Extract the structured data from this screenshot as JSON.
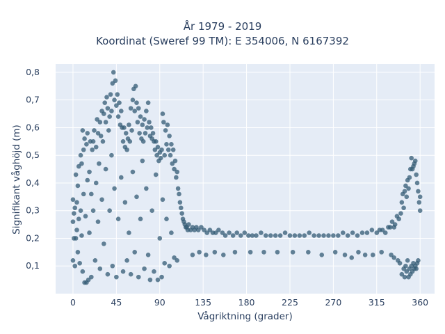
{
  "colors": {
    "plot_bg": "#e5ecf6",
    "grid": "#ffffff",
    "marker": "#335b74",
    "text": "#2a3f5f"
  },
  "chart_data": {
    "type": "scatter",
    "title_line1": "År 1979 - 2019",
    "title_line2": "Koordinat (Sweref 99 TM): E 354006, N 6167392",
    "xlabel": "Vågriktning (grader)",
    "ylabel": "Signifikant våghöjd (m)",
    "xlim": [
      -18,
      375
    ],
    "ylim": [
      0.0,
      0.83
    ],
    "x_ticks": [
      0,
      45,
      90,
      135,
      180,
      225,
      270,
      315,
      360
    ],
    "x_tick_labels": [
      "0",
      "45",
      "90",
      "135",
      "180",
      "225",
      "270",
      "315",
      "360"
    ],
    "y_ticks": [
      0.1,
      0.2,
      0.3,
      0.4,
      0.5,
      0.6,
      0.7,
      0.8
    ],
    "y_tick_labels": [
      "0,1",
      "0,2",
      "0,3",
      "0,4",
      "0,5",
      "0,6",
      "0,7",
      "0,8"
    ],
    "grid": true,
    "legend": "none",
    "marker_opacity": 0.75,
    "points": [
      [
        0,
        0.26
      ],
      [
        0,
        0.12
      ],
      [
        0,
        0.34
      ],
      [
        1,
        0.2
      ],
      [
        1,
        0.29
      ],
      [
        2,
        0.1
      ],
      [
        2,
        0.31
      ],
      [
        3,
        0.43
      ],
      [
        3,
        0.2
      ],
      [
        4,
        0.23
      ],
      [
        4,
        0.33
      ],
      [
        5,
        0.15
      ],
      [
        5,
        0.39
      ],
      [
        6,
        0.46
      ],
      [
        6,
        0.27
      ],
      [
        7,
        0.11
      ],
      [
        8,
        0.5
      ],
      [
        8,
        0.3
      ],
      [
        9,
        0.47
      ],
      [
        9,
        0.21
      ],
      [
        10,
        0.59
      ],
      [
        10,
        0.08
      ],
      [
        11,
        0.52
      ],
      [
        11,
        0.36
      ],
      [
        12,
        0.04
      ],
      [
        12,
        0.56
      ],
      [
        13,
        0.28
      ],
      [
        14,
        0.54
      ],
      [
        14,
        0.04
      ],
      [
        15,
        0.41
      ],
      [
        15,
        0.58
      ],
      [
        16,
        0.05
      ],
      [
        17,
        0.44
      ],
      [
        17,
        0.22
      ],
      [
        18,
        0.55
      ],
      [
        19,
        0.36
      ],
      [
        19,
        0.06
      ],
      [
        20,
        0.52
      ],
      [
        21,
        0.55
      ],
      [
        21,
        0.3
      ],
      [
        22,
        0.59
      ],
      [
        23,
        0.12
      ],
      [
        24,
        0.53
      ],
      [
        24,
        0.4
      ],
      [
        25,
        0.63
      ],
      [
        26,
        0.58
      ],
      [
        26,
        0.26
      ],
      [
        27,
        0.47
      ],
      [
        28,
        0.62
      ],
      [
        28,
        0.09
      ],
      [
        29,
        0.57
      ],
      [
        30,
        0.66
      ],
      [
        30,
        0.34
      ],
      [
        31,
        0.55
      ],
      [
        32,
        0.65
      ],
      [
        32,
        0.18
      ],
      [
        33,
        0.69
      ],
      [
        34,
        0.62
      ],
      [
        34,
        0.45
      ],
      [
        35,
        0.71
      ],
      [
        36,
        0.67
      ],
      [
        36,
        0.07
      ],
      [
        37,
        0.59
      ],
      [
        38,
        0.64
      ],
      [
        38,
        0.3
      ],
      [
        39,
        0.72
      ],
      [
        40,
        0.66
      ],
      [
        40,
        0.5
      ],
      [
        41,
        0.76
      ],
      [
        41,
        0.1
      ],
      [
        42,
        0.8
      ],
      [
        43,
        0.7
      ],
      [
        43,
        0.38
      ],
      [
        44,
        0.77
      ],
      [
        45,
        0.68
      ],
      [
        45,
        0.06
      ],
      [
        46,
        0.72
      ],
      [
        47,
        0.64
      ],
      [
        47,
        0.27
      ],
      [
        48,
        0.69
      ],
      [
        49,
        0.61
      ],
      [
        50,
        0.66
      ],
      [
        50,
        0.42
      ],
      [
        51,
        0.6
      ],
      [
        52,
        0.55
      ],
      [
        52,
        0.08
      ],
      [
        53,
        0.6
      ],
      [
        54,
        0.53
      ],
      [
        54,
        0.33
      ],
      [
        55,
        0.58
      ],
      [
        56,
        0.52
      ],
      [
        56,
        0.12
      ],
      [
        57,
        0.56
      ],
      [
        58,
        0.61
      ],
      [
        58,
        0.22
      ],
      [
        59,
        0.55
      ],
      [
        60,
        0.67
      ],
      [
        60,
        0.07
      ],
      [
        61,
        0.59
      ],
      [
        62,
        0.7
      ],
      [
        62,
        0.44
      ],
      [
        63,
        0.74
      ],
      [
        64,
        0.66
      ],
      [
        64,
        0.15
      ],
      [
        65,
        0.75
      ],
      [
        66,
        0.69
      ],
      [
        66,
        0.35
      ],
      [
        67,
        0.62
      ],
      [
        68,
        0.67
      ],
      [
        68,
        0.06
      ],
      [
        69,
        0.58
      ],
      [
        70,
        0.64
      ],
      [
        70,
        0.27
      ],
      [
        71,
        0.56
      ],
      [
        72,
        0.61
      ],
      [
        72,
        0.48
      ],
      [
        73,
        0.55
      ],
      [
        74,
        0.63
      ],
      [
        74,
        0.09
      ],
      [
        75,
        0.58
      ],
      [
        76,
        0.66
      ],
      [
        76,
        0.38
      ],
      [
        77,
        0.6
      ],
      [
        78,
        0.69
      ],
      [
        78,
        0.14
      ],
      [
        79,
        0.62
      ],
      [
        80,
        0.57
      ],
      [
        80,
        0.05
      ],
      [
        81,
        0.6
      ],
      [
        82,
        0.56
      ],
      [
        82,
        0.3
      ],
      [
        83,
        0.58
      ],
      [
        84,
        0.55
      ],
      [
        84,
        0.08
      ],
      [
        85,
        0.52
      ],
      [
        86,
        0.55
      ],
      [
        86,
        0.43
      ],
      [
        87,
        0.5
      ],
      [
        88,
        0.53
      ],
      [
        88,
        0.05
      ],
      [
        89,
        0.48
      ],
      [
        90,
        0.51
      ],
      [
        90,
        0.2
      ],
      [
        91,
        0.49
      ],
      [
        92,
        0.52
      ],
      [
        92,
        0.06
      ],
      [
        93,
        0.65
      ],
      [
        93,
        0.34
      ],
      [
        94,
        0.62
      ],
      [
        95,
        0.5
      ],
      [
        95,
        0.11
      ],
      [
        96,
        0.59
      ],
      [
        97,
        0.54
      ],
      [
        97,
        0.27
      ],
      [
        98,
        0.61
      ],
      [
        99,
        0.52
      ],
      [
        100,
        0.57
      ],
      [
        100,
        0.1
      ],
      [
        101,
        0.5
      ],
      [
        102,
        0.54
      ],
      [
        102,
        0.22
      ],
      [
        103,
        0.47
      ],
      [
        104,
        0.52
      ],
      [
        105,
        0.45
      ],
      [
        105,
        0.13
      ],
      [
        106,
        0.48
      ],
      [
        107,
        0.42
      ],
      [
        108,
        0.44
      ],
      [
        108,
        0.12
      ],
      [
        109,
        0.38
      ],
      [
        110,
        0.36
      ],
      [
        111,
        0.33
      ],
      [
        112,
        0.31
      ],
      [
        113,
        0.29
      ],
      [
        114,
        0.27
      ],
      [
        115,
        0.26
      ],
      [
        116,
        0.25
      ],
      [
        117,
        0.24
      ],
      [
        118,
        0.24
      ],
      [
        119,
        0.23
      ],
      [
        120,
        0.25
      ],
      [
        122,
        0.23
      ],
      [
        124,
        0.24
      ],
      [
        126,
        0.23
      ],
      [
        128,
        0.24
      ],
      [
        130,
        0.23
      ],
      [
        133,
        0.24
      ],
      [
        136,
        0.23
      ],
      [
        139,
        0.22
      ],
      [
        142,
        0.23
      ],
      [
        145,
        0.22
      ],
      [
        148,
        0.22
      ],
      [
        151,
        0.23
      ],
      [
        155,
        0.22
      ],
      [
        158,
        0.21
      ],
      [
        162,
        0.22
      ],
      [
        166,
        0.21
      ],
      [
        170,
        0.22
      ],
      [
        174,
        0.21
      ],
      [
        178,
        0.22
      ],
      [
        182,
        0.21
      ],
      [
        186,
        0.21
      ],
      [
        190,
        0.21
      ],
      [
        195,
        0.22
      ],
      [
        200,
        0.21
      ],
      [
        205,
        0.21
      ],
      [
        210,
        0.21
      ],
      [
        215,
        0.21
      ],
      [
        220,
        0.22
      ],
      [
        225,
        0.21
      ],
      [
        230,
        0.21
      ],
      [
        235,
        0.21
      ],
      [
        240,
        0.21
      ],
      [
        245,
        0.22
      ],
      [
        250,
        0.21
      ],
      [
        255,
        0.21
      ],
      [
        260,
        0.21
      ],
      [
        265,
        0.21
      ],
      [
        270,
        0.21
      ],
      [
        275,
        0.21
      ],
      [
        280,
        0.22
      ],
      [
        285,
        0.21
      ],
      [
        290,
        0.22
      ],
      [
        295,
        0.21
      ],
      [
        300,
        0.22
      ],
      [
        305,
        0.22
      ],
      [
        310,
        0.23
      ],
      [
        315,
        0.22
      ],
      [
        318,
        0.23
      ],
      [
        321,
        0.23
      ],
      [
        324,
        0.22
      ],
      [
        327,
        0.24
      ],
      [
        329,
        0.24
      ],
      [
        331,
        0.26
      ],
      [
        333,
        0.24
      ],
      [
        334,
        0.25
      ],
      [
        336,
        0.28
      ],
      [
        338,
        0.27
      ],
      [
        340,
        0.29
      ],
      [
        341,
        0.33
      ],
      [
        342,
        0.36
      ],
      [
        343,
        0.31
      ],
      [
        344,
        0.37
      ],
      [
        345,
        0.39
      ],
      [
        346,
        0.35
      ],
      [
        347,
        0.41
      ],
      [
        348,
        0.38
      ],
      [
        349,
        0.42
      ],
      [
        350,
        0.45
      ],
      [
        351,
        0.49
      ],
      [
        352,
        0.45
      ],
      [
        353,
        0.46
      ],
      [
        354,
        0.47
      ],
      [
        355,
        0.48
      ],
      [
        356,
        0.43
      ],
      [
        357,
        0.4
      ],
      [
        358,
        0.37
      ],
      [
        359,
        0.33
      ],
      [
        360,
        0.35
      ],
      [
        360,
        0.3
      ],
      [
        124,
        0.14
      ],
      [
        131,
        0.15
      ],
      [
        138,
        0.14
      ],
      [
        147,
        0.15
      ],
      [
        156,
        0.14
      ],
      [
        168,
        0.15
      ],
      [
        184,
        0.15
      ],
      [
        198,
        0.15
      ],
      [
        212,
        0.15
      ],
      [
        228,
        0.15
      ],
      [
        244,
        0.15
      ],
      [
        258,
        0.14
      ],
      [
        272,
        0.15
      ],
      [
        282,
        0.14
      ],
      [
        289,
        0.13
      ],
      [
        296,
        0.15
      ],
      [
        303,
        0.14
      ],
      [
        311,
        0.14
      ],
      [
        320,
        0.15
      ],
      [
        330,
        0.14
      ],
      [
        333,
        0.13
      ],
      [
        337,
        0.12
      ],
      [
        339,
        0.11
      ],
      [
        341,
        0.07
      ],
      [
        343,
        0.09
      ],
      [
        344,
        0.06
      ],
      [
        345,
        0.1
      ],
      [
        346,
        0.08
      ],
      [
        347,
        0.12
      ],
      [
        348,
        0.06
      ],
      [
        349,
        0.09
      ],
      [
        350,
        0.07
      ],
      [
        351,
        0.1
      ],
      [
        352,
        0.08
      ],
      [
        353,
        0.11
      ],
      [
        354,
        0.09
      ],
      [
        355,
        0.1
      ],
      [
        356,
        0.09
      ],
      [
        357,
        0.11
      ],
      [
        358,
        0.12
      ]
    ]
  }
}
